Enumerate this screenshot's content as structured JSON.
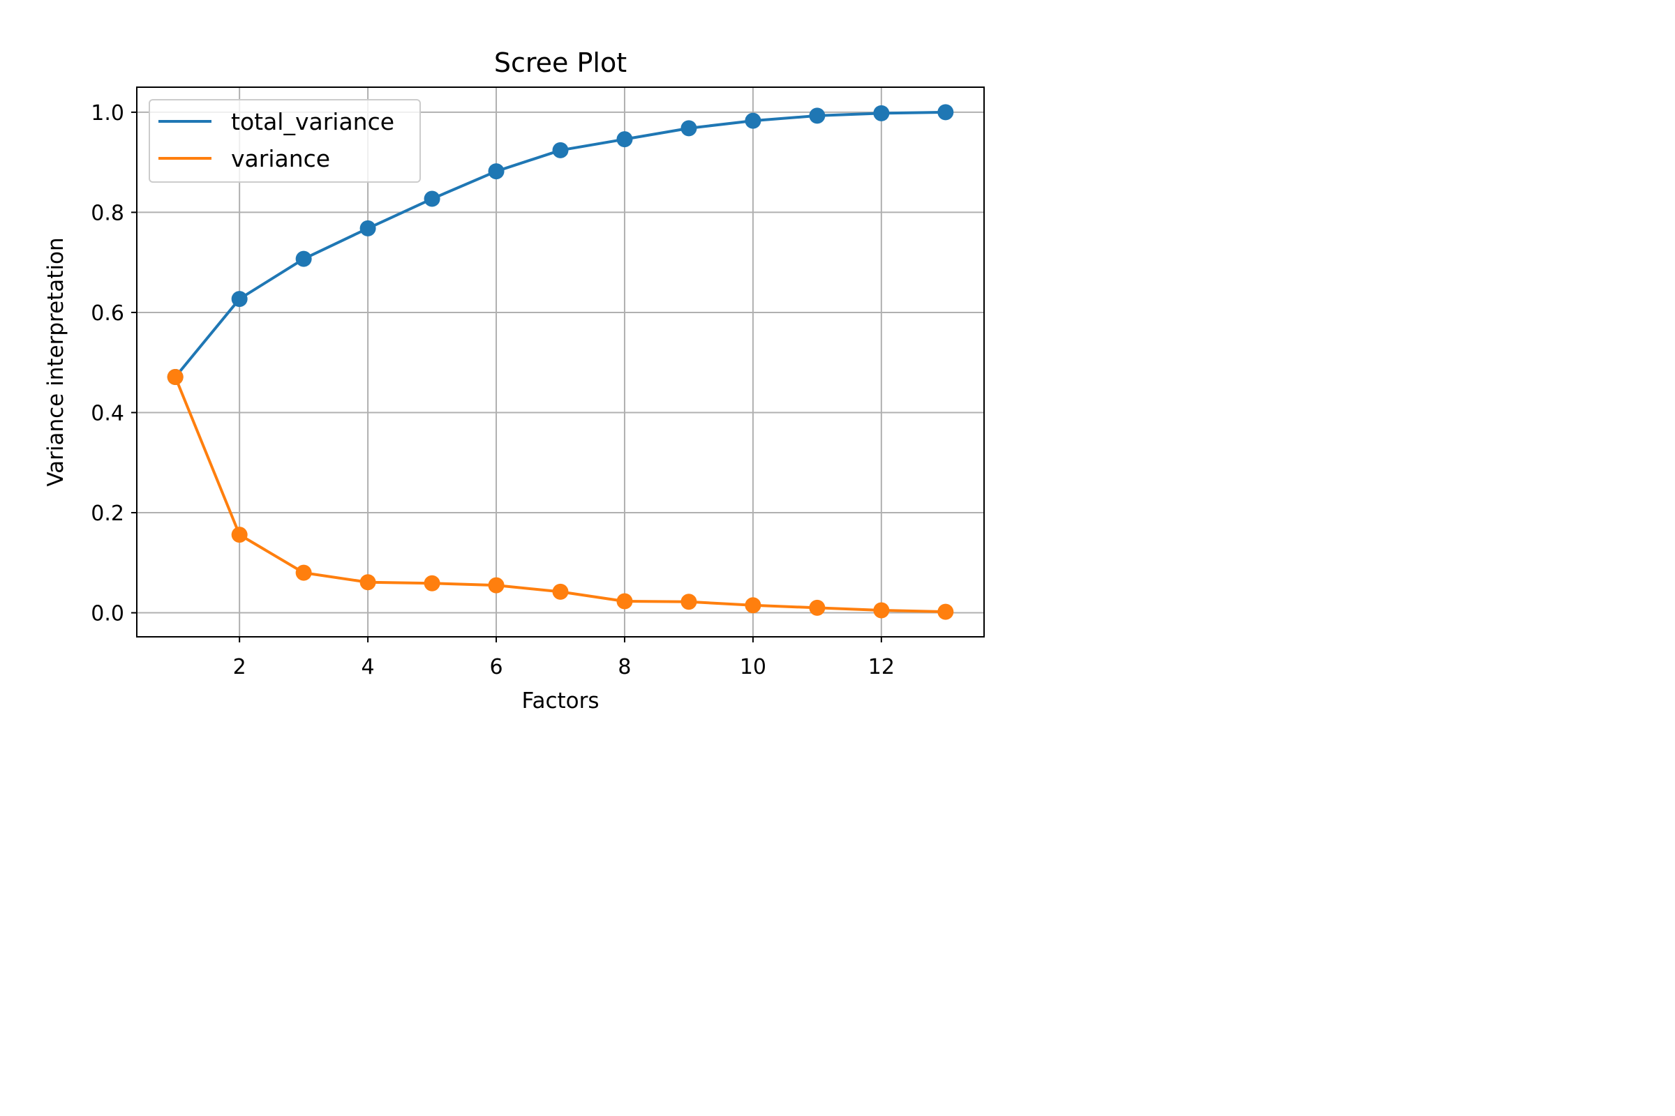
{
  "chart_data": {
    "type": "line",
    "title": "Scree Plot",
    "xlabel": "Factors",
    "ylabel": "Variance interpretation",
    "x": [
      1,
      2,
      3,
      4,
      5,
      6,
      7,
      8,
      9,
      10,
      11,
      12,
      13
    ],
    "xlim": [
      0.4,
      13.6
    ],
    "ylim": [
      -0.048,
      1.05
    ],
    "xticks": [
      2,
      4,
      6,
      8,
      10,
      12
    ],
    "xtick_labels": [
      "2",
      "4",
      "6",
      "8",
      "10",
      "12"
    ],
    "yticks": [
      0.0,
      0.2,
      0.4,
      0.6,
      0.8,
      1.0
    ],
    "ytick_labels": [
      "0.0",
      "0.2",
      "0.4",
      "0.6",
      "0.8",
      "1.0"
    ],
    "grid": true,
    "markers": true,
    "legend_position": "upper left",
    "series": [
      {
        "name": "total_variance",
        "color": "#1f77b4",
        "values": [
          0.471,
          0.627,
          0.707,
          0.768,
          0.827,
          0.882,
          0.924,
          0.946,
          0.968,
          0.983,
          0.993,
          0.998,
          1.0
        ]
      },
      {
        "name": "variance",
        "color": "#ff7f0e",
        "values": [
          0.471,
          0.156,
          0.08,
          0.061,
          0.059,
          0.055,
          0.042,
          0.023,
          0.022,
          0.015,
          0.01,
          0.005,
          0.002
        ]
      }
    ]
  }
}
